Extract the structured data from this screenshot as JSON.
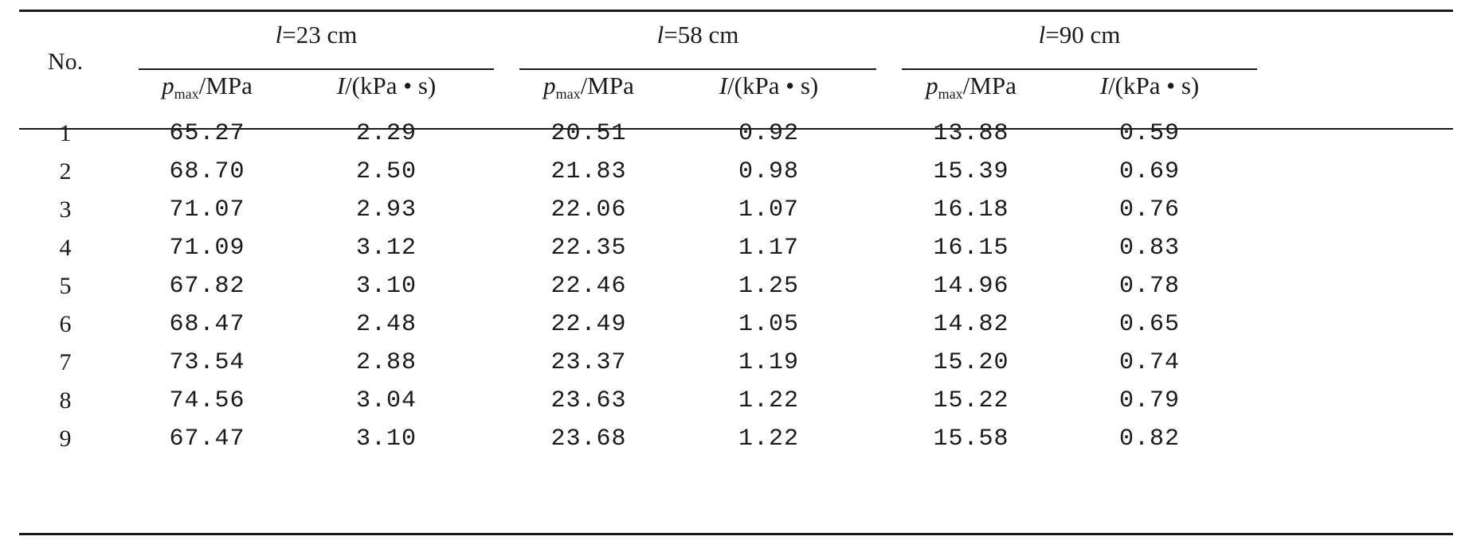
{
  "header": {
    "no_label": "No.",
    "groups": [
      {
        "var": "l",
        "eq": "=23 cm"
      },
      {
        "var": "l",
        "eq": "=58 cm"
      },
      {
        "var": "l",
        "eq": "=90 cm"
      }
    ],
    "sub_cols": {
      "p_symbol": "p",
      "p_sub": "max",
      "p_unit": "/MPa",
      "i_symbol": "I",
      "i_unit": "/(kPa • s)"
    }
  },
  "rows": [
    {
      "no": "1",
      "v": [
        "65.27",
        "2.29",
        "20.51",
        "0.92",
        "13.88",
        "0.59"
      ]
    },
    {
      "no": "2",
      "v": [
        "68.70",
        "2.50",
        "21.83",
        "0.98",
        "15.39",
        "0.69"
      ]
    },
    {
      "no": "3",
      "v": [
        "71.07",
        "2.93",
        "22.06",
        "1.07",
        "16.18",
        "0.76"
      ]
    },
    {
      "no": "4",
      "v": [
        "71.09",
        "3.12",
        "22.35",
        "1.17",
        "16.15",
        "0.83"
      ]
    },
    {
      "no": "5",
      "v": [
        "67.82",
        "3.10",
        "22.46",
        "1.25",
        "14.96",
        "0.78"
      ]
    },
    {
      "no": "6",
      "v": [
        "68.47",
        "2.48",
        "22.49",
        "1.05",
        "14.82",
        "0.65"
      ]
    },
    {
      "no": "7",
      "v": [
        "73.54",
        "2.88",
        "23.37",
        "1.19",
        "15.20",
        "0.74"
      ]
    },
    {
      "no": "8",
      "v": [
        "74.56",
        "3.04",
        "23.63",
        "1.22",
        "15.22",
        "0.79"
      ]
    },
    {
      "no": "9",
      "v": [
        "67.47",
        "3.10",
        "23.68",
        "1.22",
        "15.58",
        "0.82"
      ]
    }
  ]
}
